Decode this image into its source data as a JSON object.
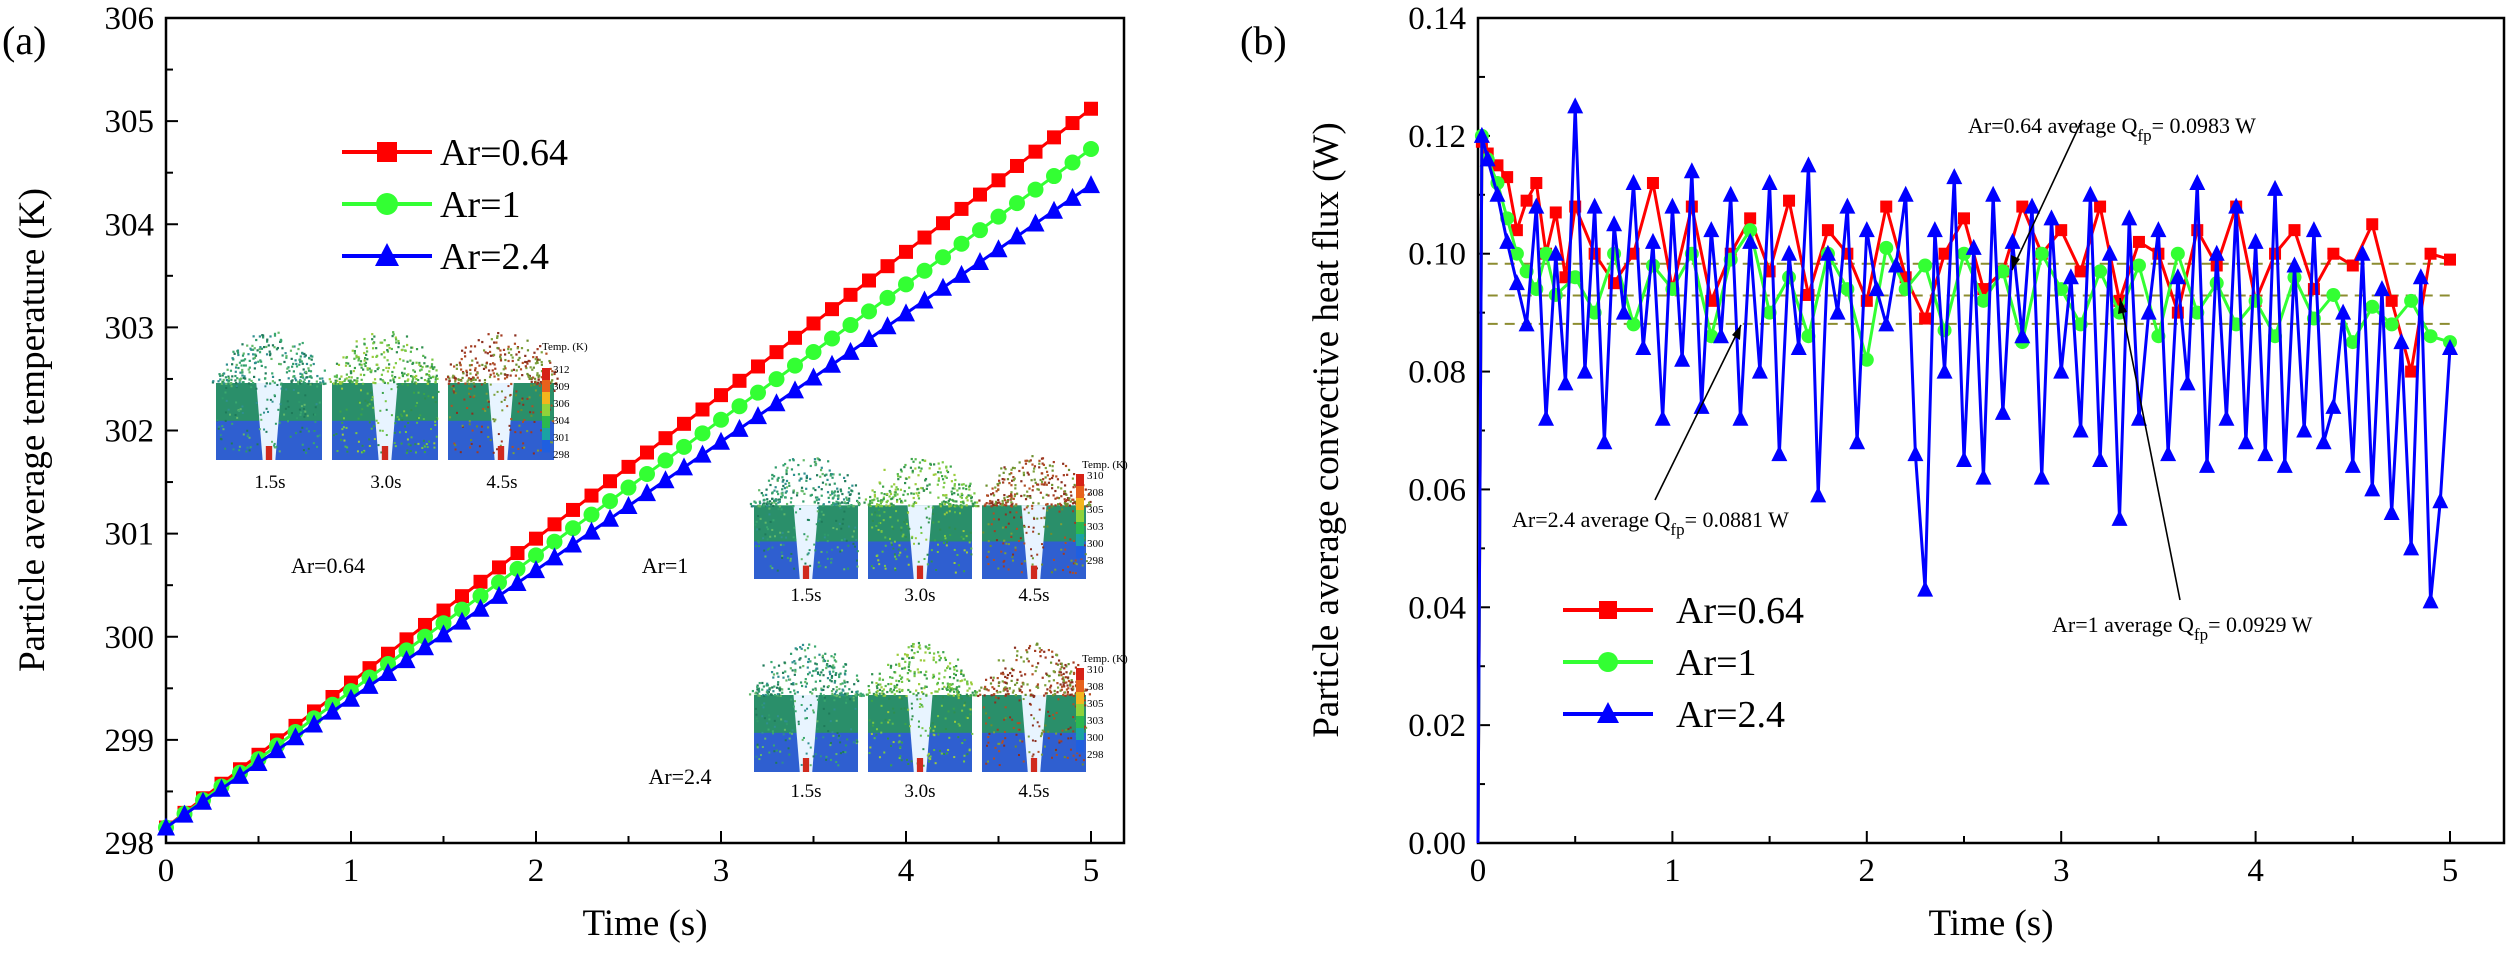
{
  "chart_data": [
    {
      "panel_label": "(a)",
      "type": "line",
      "xlabel": "Time (s)",
      "ylabel": "Particle average temperature (K)",
      "xlim": [
        0,
        5
      ],
      "ylim": [
        298,
        306
      ],
      "xticks": [
        "0",
        "1",
        "2",
        "3",
        "4",
        "5"
      ],
      "yticks": [
        "298",
        "299",
        "300",
        "301",
        "302",
        "303",
        "304",
        "305",
        "306"
      ],
      "legend_position": "upper-left",
      "grid": false,
      "series": [
        {
          "name": "Ar=0.64",
          "color": "#ff0000",
          "marker": "square",
          "x0": 0,
          "dx": 0.1,
          "start": 298.15,
          "end": 305.12,
          "curve": 0.9
        },
        {
          "name": "Ar=1",
          "color": "#33ff33",
          "marker": "circle",
          "x0": 0,
          "dx": 0.1,
          "start": 298.15,
          "end": 304.73,
          "curve": 0.94
        },
        {
          "name": "Ar=2.4",
          "color": "#0000ff",
          "marker": "triangle",
          "x0": 0,
          "dx": 0.1,
          "start": 298.15,
          "end": 304.38,
          "curve": 0.97
        }
      ],
      "insets": [
        {
          "label": "Ar=0.64",
          "times": [
            "1.5s",
            "3.0s",
            "4.5s"
          ],
          "colorbar_title": "Temp. (K)",
          "colorbar_ticks": [
            "312",
            "309",
            "306",
            "304",
            "301",
            "298"
          ]
        },
        {
          "label": "Ar=1",
          "times": [
            "1.5s",
            "3.0s",
            "4.5s"
          ],
          "colorbar_title": "Temp. (K)",
          "colorbar_ticks": [
            "310",
            "308",
            "305",
            "303",
            "300",
            "298"
          ]
        },
        {
          "label": "Ar=2.4",
          "times": [
            "1.5s",
            "3.0s",
            "4.5s"
          ],
          "colorbar_title": "Temp. (K)",
          "colorbar_ticks": [
            "310",
            "308",
            "305",
            "303",
            "300",
            "298"
          ]
        }
      ]
    },
    {
      "panel_label": "(b)",
      "type": "line",
      "xlabel": "Time (s)",
      "ylabel": "Particle average convective heat flux (W)",
      "xlim": [
        0,
        5
      ],
      "ylim": [
        0,
        0.14
      ],
      "xticks": [
        "0",
        "1",
        "2",
        "3",
        "4",
        "5"
      ],
      "yticks": [
        "0.00",
        "0.02",
        "0.04",
        "0.06",
        "0.08",
        "0.10",
        "0.12",
        "0.14"
      ],
      "legend_position": "lower-left",
      "grid": false,
      "averages": [
        {
          "series": "Ar=0.64",
          "value": 0.0983,
          "text": "Ar=0.64 average Q",
          "sub": "fp",
          "tail": "= 0.0983 W"
        },
        {
          "series": "Ar=1",
          "value": 0.0929,
          "text": "Ar=1 average Q",
          "sub": "fp",
          "tail": "= 0.0929 W"
        },
        {
          "series": "Ar=2.4",
          "value": 0.0881,
          "text": "Ar=2.4 average Q",
          "sub": "fp",
          "tail": "= 0.0881 W"
        }
      ],
      "series": [
        {
          "name": "Ar=0.64",
          "color": "#ff0000",
          "marker": "square",
          "x": [
            0,
            0.02,
            0.05,
            0.1,
            0.15,
            0.2,
            0.25,
            0.3,
            0.35,
            0.4,
            0.45,
            0.5,
            0.6,
            0.7,
            0.8,
            0.9,
            1.0,
            1.1,
            1.2,
            1.3,
            1.4,
            1.5,
            1.6,
            1.7,
            1.8,
            1.9,
            2.0,
            2.1,
            2.2,
            2.3,
            2.4,
            2.5,
            2.6,
            2.7,
            2.8,
            2.9,
            3.0,
            3.1,
            3.2,
            3.3,
            3.4,
            3.5,
            3.6,
            3.7,
            3.8,
            3.9,
            4.0,
            4.1,
            4.2,
            4.3,
            4.4,
            4.5,
            4.6,
            4.7,
            4.8,
            4.9,
            5.0
          ],
          "y": [
            0.0,
            0.119,
            0.117,
            0.115,
            0.113,
            0.104,
            0.109,
            0.112,
            0.1,
            0.107,
            0.096,
            0.108,
            0.1,
            0.095,
            0.1,
            0.112,
            0.094,
            0.108,
            0.092,
            0.1,
            0.106,
            0.097,
            0.109,
            0.093,
            0.104,
            0.1,
            0.092,
            0.108,
            0.096,
            0.089,
            0.1,
            0.106,
            0.094,
            0.097,
            0.108,
            0.1,
            0.104,
            0.097,
            0.108,
            0.092,
            0.102,
            0.1,
            0.09,
            0.104,
            0.098,
            0.108,
            0.092,
            0.1,
            0.104,
            0.094,
            0.1,
            0.098,
            0.105,
            0.092,
            0.08,
            0.1,
            0.099
          ]
        },
        {
          "name": "Ar=1",
          "color": "#33ff33",
          "marker": "circle",
          "x": [
            0,
            0.02,
            0.05,
            0.1,
            0.15,
            0.2,
            0.25,
            0.3,
            0.35,
            0.4,
            0.5,
            0.6,
            0.7,
            0.8,
            0.9,
            1.0,
            1.1,
            1.2,
            1.3,
            1.4,
            1.5,
            1.6,
            1.7,
            1.8,
            1.9,
            2.0,
            2.1,
            2.2,
            2.3,
            2.4,
            2.5,
            2.6,
            2.7,
            2.8,
            2.9,
            3.0,
            3.1,
            3.2,
            3.3,
            3.4,
            3.5,
            3.6,
            3.7,
            3.8,
            3.9,
            4.0,
            4.1,
            4.2,
            4.3,
            4.4,
            4.5,
            4.6,
            4.7,
            4.8,
            4.9,
            5.0
          ],
          "y": [
            0.0,
            0.12,
            0.116,
            0.112,
            0.106,
            0.1,
            0.097,
            0.094,
            0.1,
            0.093,
            0.096,
            0.09,
            0.1,
            0.088,
            0.098,
            0.094,
            0.1,
            0.086,
            0.099,
            0.104,
            0.09,
            0.096,
            0.086,
            0.1,
            0.094,
            0.082,
            0.101,
            0.094,
            0.098,
            0.087,
            0.1,
            0.092,
            0.097,
            0.085,
            0.1,
            0.094,
            0.088,
            0.097,
            0.09,
            0.098,
            0.086,
            0.1,
            0.09,
            0.095,
            0.088,
            0.092,
            0.086,
            0.096,
            0.089,
            0.093,
            0.085,
            0.091,
            0.088,
            0.092,
            0.086,
            0.085
          ]
        },
        {
          "name": "Ar=2.4",
          "color": "#0000ff",
          "marker": "triangle",
          "x": [
            0,
            0.02,
            0.05,
            0.1,
            0.15,
            0.2,
            0.25,
            0.3,
            0.35,
            0.4,
            0.45,
            0.5,
            0.55,
            0.6,
            0.65,
            0.7,
            0.75,
            0.8,
            0.85,
            0.9,
            0.95,
            1.0,
            1.05,
            1.1,
            1.15,
            1.2,
            1.25,
            1.3,
            1.35,
            1.4,
            1.45,
            1.5,
            1.55,
            1.6,
            1.65,
            1.7,
            1.75,
            1.8,
            1.85,
            1.9,
            1.95,
            2.0,
            2.05,
            2.1,
            2.15,
            2.2,
            2.25,
            2.3,
            2.35,
            2.4,
            2.45,
            2.5,
            2.55,
            2.6,
            2.65,
            2.7,
            2.75,
            2.8,
            2.85,
            2.9,
            2.95,
            3.0,
            3.05,
            3.1,
            3.15,
            3.2,
            3.25,
            3.3,
            3.35,
            3.4,
            3.45,
            3.5,
            3.55,
            3.6,
            3.65,
            3.7,
            3.75,
            3.8,
            3.85,
            3.9,
            3.95,
            4.0,
            4.05,
            4.1,
            4.15,
            4.2,
            4.25,
            4.3,
            4.35,
            4.4,
            4.45,
            4.5,
            4.55,
            4.6,
            4.65,
            4.7,
            4.75,
            4.8,
            4.85,
            4.9,
            4.95,
            5.0
          ],
          "y": [
            0.0,
            0.12,
            0.116,
            0.11,
            0.102,
            0.095,
            0.088,
            0.108,
            0.072,
            0.1,
            0.078,
            0.125,
            0.08,
            0.108,
            0.068,
            0.105,
            0.09,
            0.112,
            0.084,
            0.102,
            0.072,
            0.108,
            0.082,
            0.114,
            0.074,
            0.104,
            0.086,
            0.11,
            0.072,
            0.102,
            0.08,
            0.112,
            0.066,
            0.1,
            0.084,
            0.115,
            0.059,
            0.1,
            0.09,
            0.108,
            0.068,
            0.104,
            0.094,
            0.088,
            0.098,
            0.11,
            0.066,
            0.043,
            0.104,
            0.08,
            0.113,
            0.065,
            0.101,
            0.062,
            0.11,
            0.073,
            0.102,
            0.086,
            0.108,
            0.062,
            0.106,
            0.08,
            0.096,
            0.07,
            0.11,
            0.065,
            0.1,
            0.055,
            0.106,
            0.072,
            0.09,
            0.104,
            0.066,
            0.096,
            0.078,
            0.112,
            0.064,
            0.1,
            0.072,
            0.108,
            0.068,
            0.102,
            0.066,
            0.111,
            0.064,
            0.098,
            0.07,
            0.104,
            0.068,
            0.074,
            0.09,
            0.064,
            0.1,
            0.06,
            0.094,
            0.056,
            0.085,
            0.05,
            0.096,
            0.041,
            0.058,
            0.084
          ]
        }
      ]
    }
  ]
}
